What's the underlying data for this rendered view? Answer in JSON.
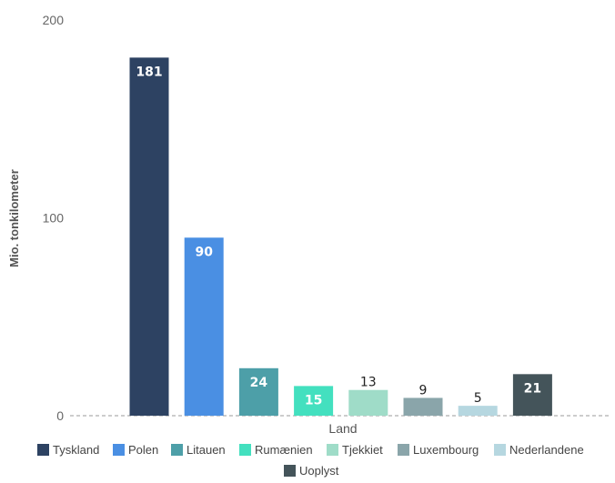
{
  "chart_data": {
    "type": "bar",
    "categories": [
      "Tyskland",
      "Polen",
      "Litauen",
      "Rumænien",
      "Tjekkiet",
      "Luxembourg",
      "Nederlandene",
      "Uoplyst"
    ],
    "values": [
      181,
      90,
      24,
      15,
      13,
      9,
      5,
      21
    ],
    "colors": [
      "#2d4262",
      "#4a8fe3",
      "#4d9fa8",
      "#43e0bf",
      "#9fdcc8",
      "#8aa5aa",
      "#b6d7e0",
      "#44545a"
    ],
    "label_colors": [
      "#ffffff",
      "#ffffff",
      "#ffffff",
      "#ffffff",
      "#222222",
      "#222222",
      "#222222",
      "#ffffff"
    ],
    "xlabel": "Land",
    "ylabel": "Mio. tonkilometer",
    "ylim": [
      0,
      200
    ],
    "yticks": [
      0,
      100,
      200
    ],
    "grid": false,
    "legend_position": "bottom"
  }
}
